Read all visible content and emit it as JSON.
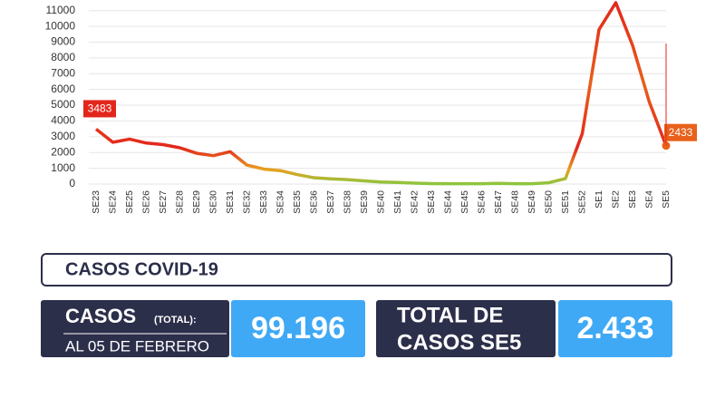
{
  "chart_data": {
    "type": "line",
    "categories": [
      "SE23",
      "SE24",
      "SE25",
      "SE26",
      "SE27",
      "SE28",
      "SE29",
      "SE30",
      "SE31",
      "SE32",
      "SE33",
      "SE34",
      "SE35",
      "SE36",
      "SE37",
      "SE38",
      "SE39",
      "SE40",
      "SE41",
      "SE42",
      "SE43",
      "SE44",
      "SE45",
      "SE46",
      "SE47",
      "SE48",
      "SE49",
      "SE50",
      "SE51",
      "SE52",
      "SE1",
      "SE2",
      "SE3",
      "SE4",
      "SE5"
    ],
    "values": [
      3483,
      2650,
      2850,
      2600,
      2500,
      2300,
      1950,
      1800,
      2050,
      1200,
      950,
      850,
      600,
      400,
      330,
      280,
      200,
      130,
      100,
      60,
      30,
      20,
      20,
      20,
      40,
      20,
      20,
      80,
      350,
      3200,
      9800,
      11500,
      8800,
      5200,
      2433
    ],
    "value_labels": [
      "3483",
      null,
      null,
      null,
      null,
      null,
      null,
      null,
      null,
      null,
      null,
      null,
      null,
      null,
      null,
      null,
      null,
      null,
      null,
      null,
      null,
      null,
      null,
      null,
      null,
      null,
      null,
      null,
      null,
      null,
      null,
      null,
      null,
      null,
      "2433"
    ],
    "color": "#e3261c",
    "ylim": [
      0,
      11500
    ],
    "yticks": [
      0,
      1000,
      2000,
      3000,
      4000,
      5000,
      6000,
      7000,
      8000,
      9000,
      10000,
      11000
    ],
    "grid": true
  },
  "summary": {
    "title": "CASOS COVID-19",
    "total_label": "CASOS",
    "total_qualifier": "(TOTAL):",
    "total_date": "AL 05 DE FEBRERO",
    "total_value": "99.196",
    "week_label_1": "TOTAL DE",
    "week_label_2": "CASOS SE5",
    "week_value": "2.433"
  }
}
